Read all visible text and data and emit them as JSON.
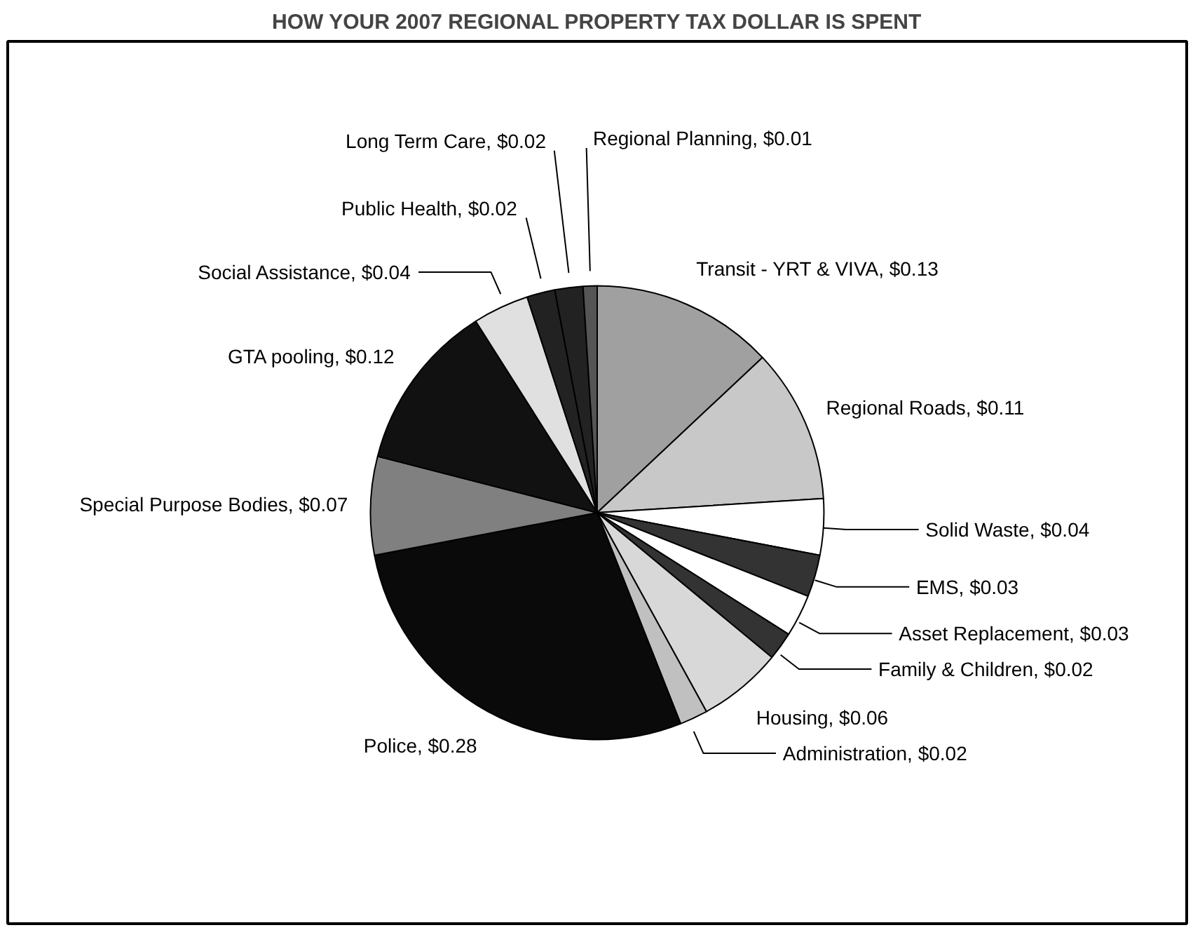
{
  "chart_data": {
    "type": "pie",
    "title": "HOW YOUR 2007 REGIONAL PROPERTY TAX DOLLAR IS SPENT",
    "categories": [
      "Transit - YRT & VIVA",
      "Regional Roads",
      "Solid Waste",
      "EMS",
      "Asset Replacement",
      "Family & Children",
      "Housing",
      "Administration",
      "Police",
      "Special Purpose Bodies",
      "GTA pooling",
      "Social Assistance",
      "Public Health",
      "Long Term Care",
      "Regional Planning"
    ],
    "values": [
      0.13,
      0.11,
      0.04,
      0.03,
      0.03,
      0.02,
      0.06,
      0.02,
      0.28,
      0.07,
      0.12,
      0.04,
      0.02,
      0.02,
      0.01
    ],
    "value_labels": [
      "$0.13",
      "$0.11",
      "$0.04",
      "$0.03",
      "$0.03",
      "$0.02",
      "$0.06",
      "$0.02",
      "$0.28",
      "$0.07",
      "$0.12",
      "$0.04",
      "$0.02",
      "$0.02",
      "$0.01"
    ],
    "colors": [
      "#a0a0a0",
      "#c8c8c8",
      "#ffffff",
      "#333333",
      "#ffffff",
      "#333333",
      "#d8d8d8",
      "#c0c0c0",
      "#0a0a0a",
      "#808080",
      "#111111",
      "#e0e0e0",
      "#222222",
      "#222222",
      "#555555"
    ]
  }
}
